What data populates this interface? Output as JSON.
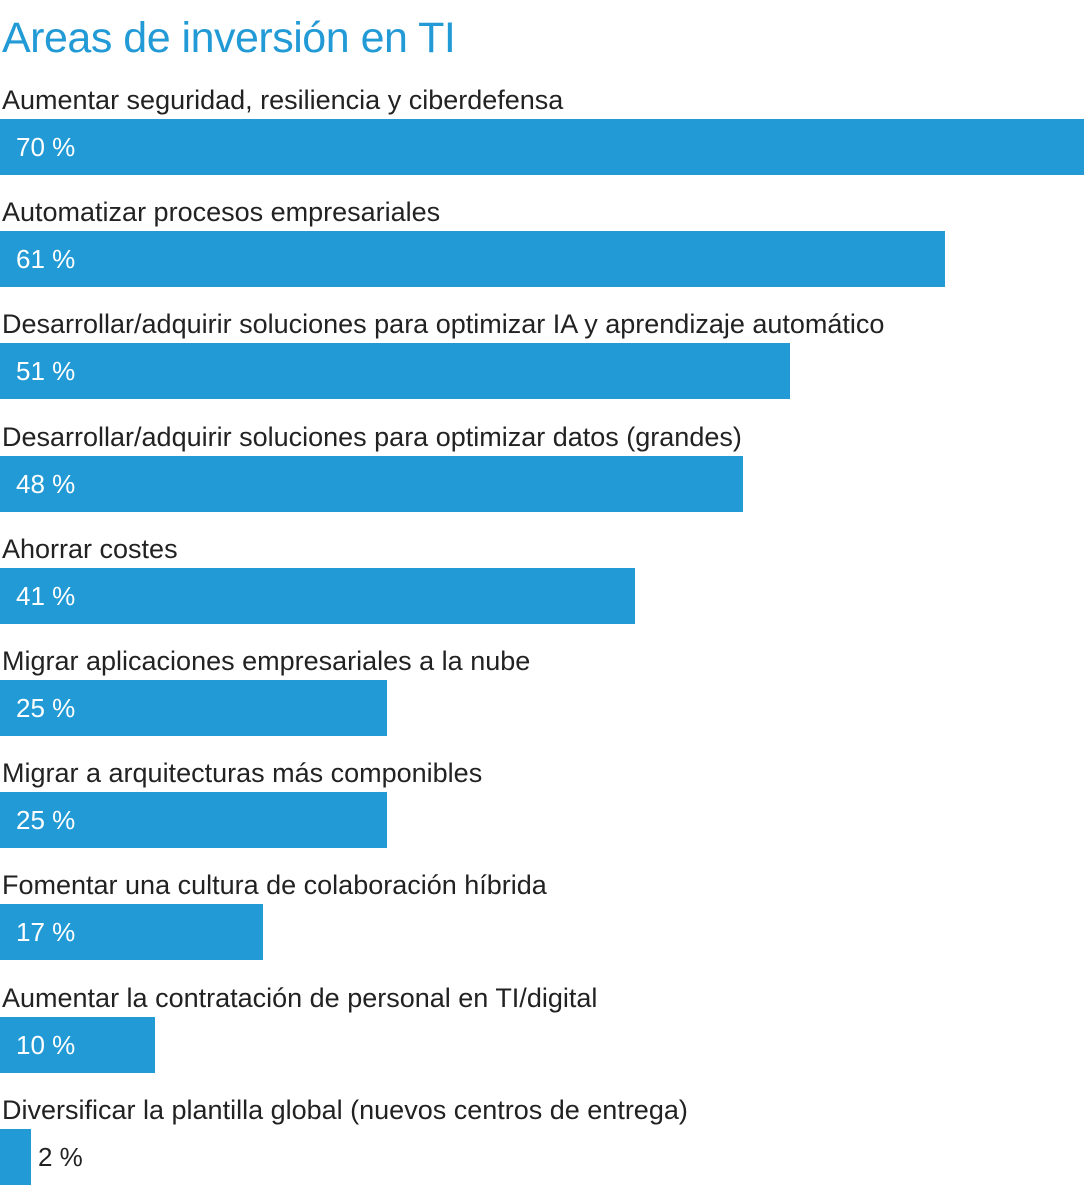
{
  "chart_data": {
    "type": "bar",
    "orientation": "horizontal",
    "title": "Areas de inversión en TI",
    "categories": [
      "Aumentar seguridad, resiliencia y ciberdefensa",
      "Automatizar procesos empresariales",
      "Desarrollar/adquirir soluciones para optimizar IA y aprendizaje automático",
      "Desarrollar/adquirir soluciones para optimizar datos (grandes)",
      "Ahorrar costes",
      "Migrar aplicaciones empresariales a la nube",
      "Migrar a arquitecturas más componibles",
      "Fomentar una cultura de colaboración híbrida",
      "Aumentar la contratación de personal en TI/digital",
      "Diversificar la plantilla global (nuevos centros de entrega)"
    ],
    "values": [
      70,
      61,
      51,
      48,
      41,
      25,
      25,
      17,
      10,
      2
    ],
    "value_labels": [
      "70 %",
      "61 %",
      "51 %",
      "48 %",
      "41 %",
      "25 %",
      "25 %",
      "17 %",
      "10 %",
      "2 %"
    ],
    "xlim": [
      0,
      70
    ],
    "grid": false,
    "bar_color": "#219ad6",
    "title_color": "#219ad6",
    "text_color": "#222222"
  }
}
